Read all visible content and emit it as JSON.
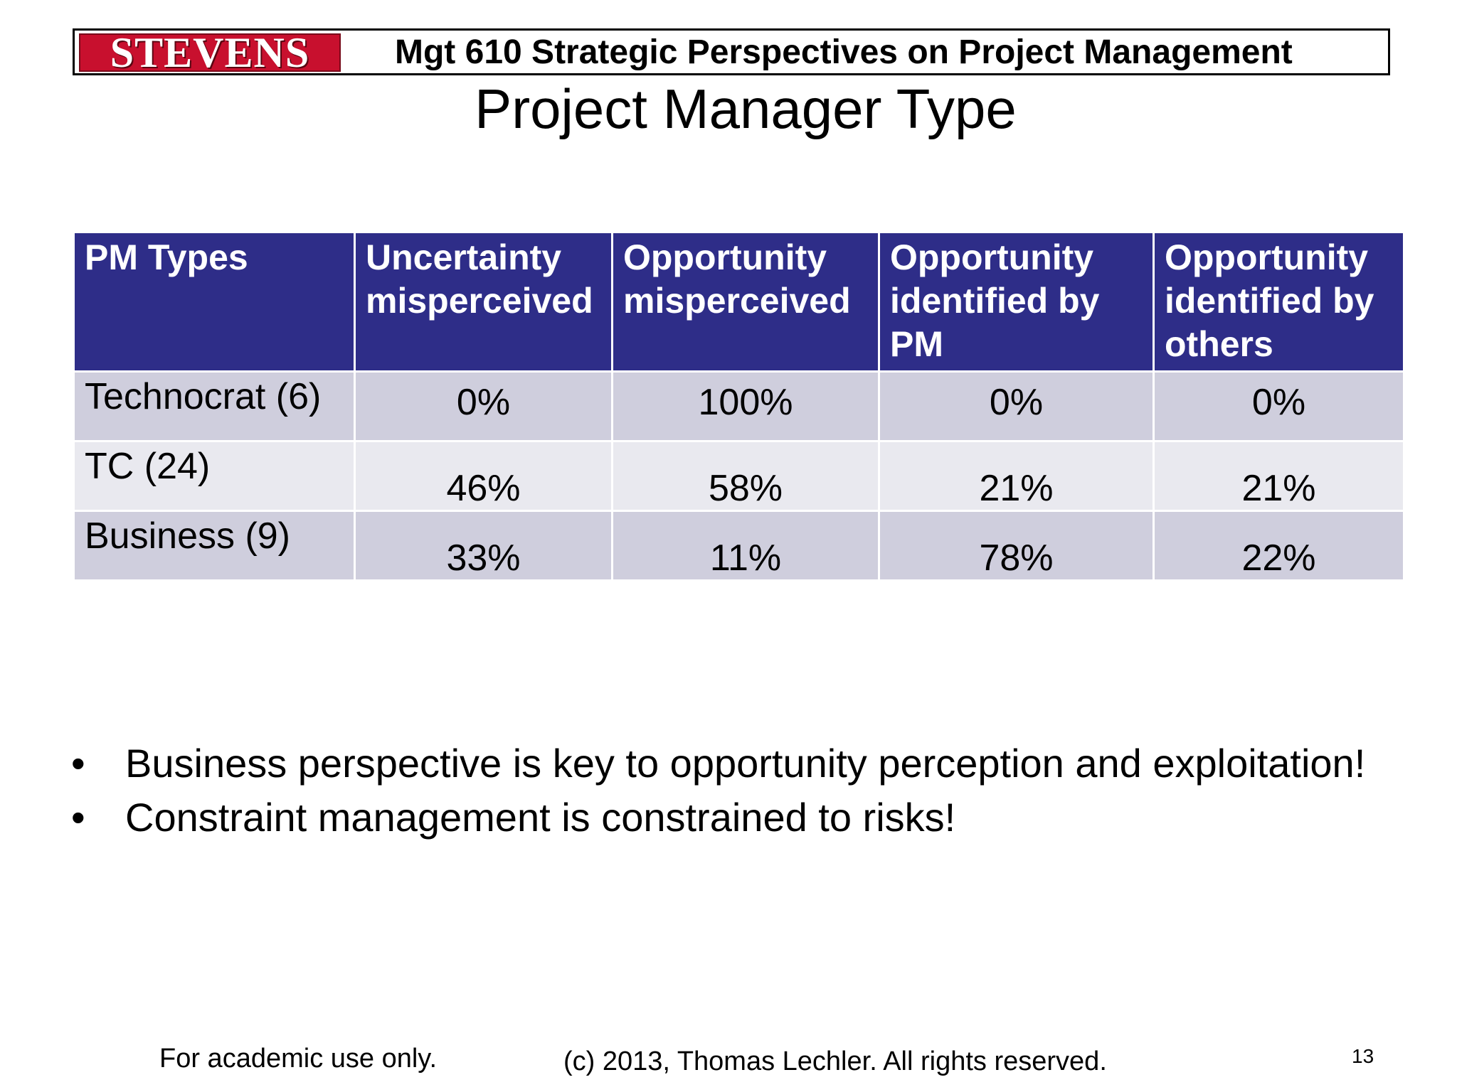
{
  "header": {
    "logo_text": "STEVENS",
    "course_title": "Mgt 610 Strategic Perspectives on Project Management"
  },
  "slide": {
    "title": "Project Manager Type"
  },
  "table": {
    "headers": [
      "PM Types",
      "Uncertainty misperceived",
      "Opportunity misperceived",
      "Opportunity identified by PM",
      "Opportunity identified by others"
    ],
    "rows": [
      {
        "label": "Technocrat (6)",
        "values": [
          "0%",
          "100%",
          "0%",
          "0%"
        ]
      },
      {
        "label": "TC (24)",
        "values": [
          "46%",
          "58%",
          "21%",
          "21%"
        ]
      },
      {
        "label": "Business (9)",
        "values": [
          "33%",
          "11%",
          "78%",
          "22%"
        ]
      }
    ]
  },
  "bullets": {
    "marker": "•",
    "items": [
      "Business perspective is key to opportunity perception and exploitation!",
      "Constraint management is constrained to risks!"
    ]
  },
  "footer": {
    "left": "For academic use only.",
    "center": "(c) 2013, Thomas Lechler.  All rights reserved.",
    "page_number": "13"
  },
  "colors": {
    "header_fill": "#2e2d88",
    "row_dark": "#cfcedd",
    "row_light": "#e9e9ef",
    "logo_red": "#c8102e"
  }
}
